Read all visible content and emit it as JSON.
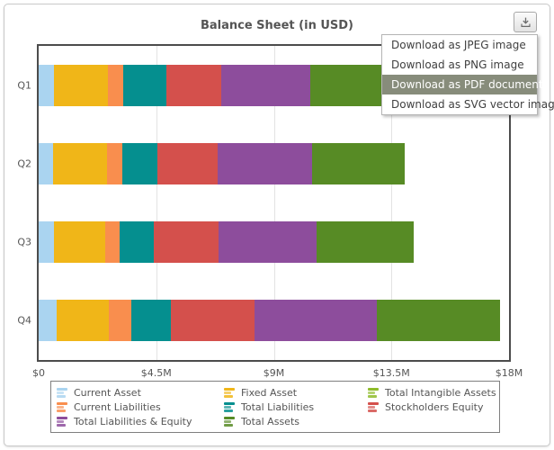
{
  "panel": {
    "title": "Balance Sheet (in USD)"
  },
  "toolbar": {
    "download_icon": "download-arrow-into-tray"
  },
  "menu": {
    "items": [
      {
        "label": "Download as JPEG image",
        "selected": false
      },
      {
        "label": "Download as PNG image",
        "selected": false
      },
      {
        "label": "Download as PDF document",
        "selected": true
      },
      {
        "label": "Download as SVG vector image",
        "selected": false
      }
    ]
  },
  "chart_data": {
    "type": "bar",
    "subtype": "horizontal-stacked",
    "title": "Balance Sheet (in USD)",
    "categories": [
      "Q1",
      "Q2",
      "Q3",
      "Q4"
    ],
    "x_axis": {
      "min": 0,
      "max": 18,
      "unit": "USD (millions)",
      "ticks": [
        "$0",
        "$4.5M",
        "$9M",
        "$13.5M",
        "$18M"
      ]
    },
    "grid": true,
    "legend_position": "bottom",
    "series": [
      {
        "name": "Current Asset",
        "color": "#aad4f0",
        "values": [
          0.6,
          0.55,
          0.6,
          0.7
        ]
      },
      {
        "name": "Fixed Asset",
        "color": "#f0b618",
        "values": [
          2.05,
          2.05,
          1.95,
          2.0
        ]
      },
      {
        "name": "Total Intangible Assets",
        "color": "#8ebb2a",
        "values": [
          0,
          0,
          0,
          0
        ]
      },
      {
        "name": "Current Liabilities",
        "color": "#f98e4e",
        "values": [
          0.6,
          0.6,
          0.55,
          0.85
        ]
      },
      {
        "name": "Total Liabilities",
        "color": "#058f8f",
        "values": [
          1.65,
          1.35,
          1.3,
          1.5
        ]
      },
      {
        "name": "Stockholders Equity",
        "color": "#d4504c",
        "values": [
          2.1,
          2.3,
          2.5,
          3.2
        ]
      },
      {
        "name": "Total Liabilities & Equity",
        "color": "#8d4d9c",
        "values": [
          3.4,
          3.6,
          3.75,
          4.7
        ]
      },
      {
        "name": "Total Assets",
        "color": "#578b25",
        "values": [
          3.4,
          3.55,
          3.7,
          4.7
        ]
      }
    ]
  },
  "colors": {
    "menu_highlight": "#878c7b",
    "plot_border": "#4c4c4c",
    "gridline": "#e3e3e3",
    "text": "#555555"
  }
}
